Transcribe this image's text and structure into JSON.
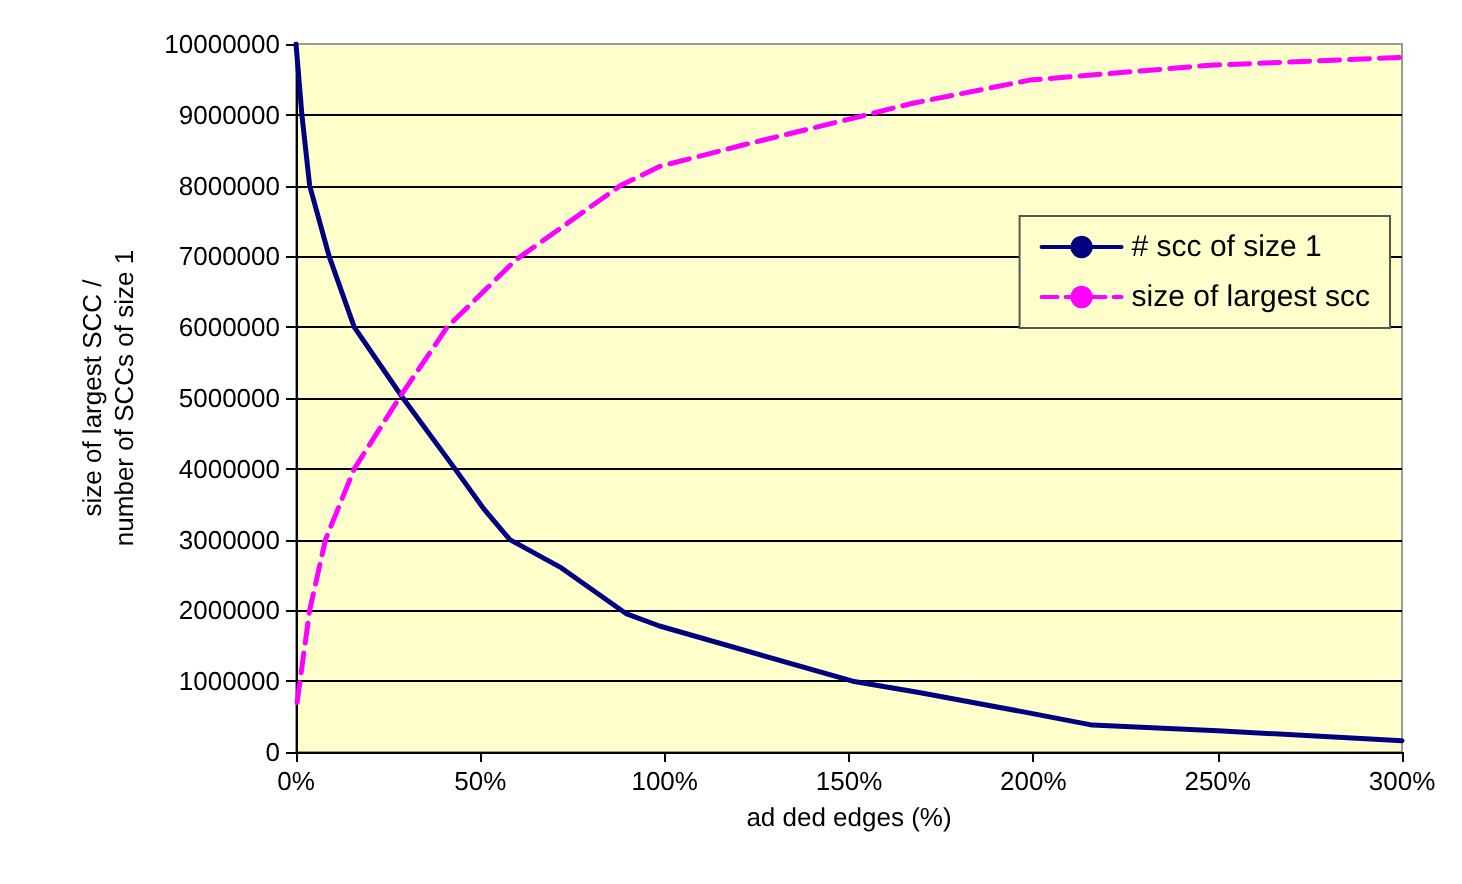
{
  "chart_data": {
    "type": "line",
    "xlabel": "ad ded edges (%)",
    "ylabel": "size of largest SCC /\nnumber of SCCs of size 1",
    "xlim": [
      0,
      300
    ],
    "xticks": [
      {
        "value": 0,
        "label": "0%"
      },
      {
        "value": 50,
        "label": "50%"
      },
      {
        "value": 100,
        "label": "100%"
      },
      {
        "value": 150,
        "label": "150%"
      },
      {
        "value": 200,
        "label": "200%"
      },
      {
        "value": 250,
        "label": "250%"
      },
      {
        "value": 300,
        "label": "300%"
      }
    ],
    "ylim": [
      0,
      10000000
    ],
    "yticks": [
      0,
      1000000,
      2000000,
      3000000,
      4000000,
      5000000,
      6000000,
      7000000,
      8000000,
      9000000,
      10000000
    ],
    "grid": "y",
    "legend": "right",
    "marker": "none",
    "series": [
      {
        "name": "# scc of size 1",
        "color": "#000080",
        "line_style": "solid",
        "x": [
          0,
          1.6,
          3.7,
          9,
          15.8,
          29,
          42,
          51,
          58,
          72,
          89.7,
          98.6,
          151,
          169,
          197,
          216,
          250,
          300
        ],
        "values": [
          10000000,
          9000000,
          8000000,
          7000000,
          6000000,
          5000000,
          4080000,
          3430000,
          3000000,
          2600000,
          1950000,
          1780000,
          1000000,
          840000,
          570000,
          380000,
          300000,
          160000
        ]
      },
      {
        "name": "size of largest scc",
        "color": "#ff00ff",
        "line_style": "dashed",
        "x": [
          0.3,
          3.7,
          8,
          15.8,
          28,
          41,
          59.6,
          88,
          98.6,
          121,
          151,
          167,
          199,
          248,
          300
        ],
        "values": [
          700000,
          2000000,
          3000000,
          4000000,
          5000000,
          6000000,
          6950000,
          8000000,
          8270000,
          8570000,
          8950000,
          9160000,
          9490000,
          9700000,
          9810000
        ]
      }
    ]
  }
}
